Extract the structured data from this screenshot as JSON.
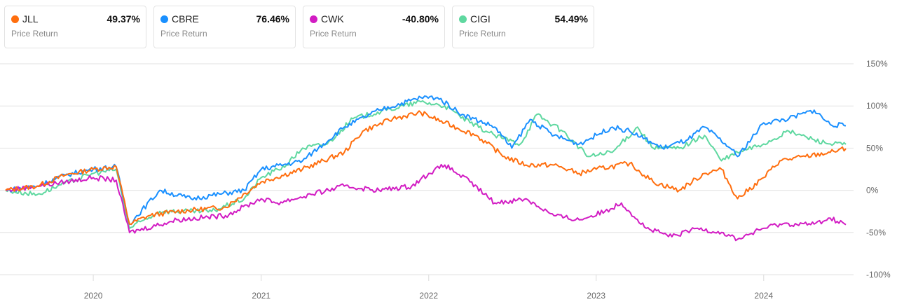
{
  "legend": [
    {
      "ticker": "JLL",
      "value": "49.37%",
      "sub": "Price Return",
      "color": "#ff6e0e"
    },
    {
      "ticker": "CBRE",
      "value": "76.46%",
      "sub": "Price Return",
      "color": "#1a90ff"
    },
    {
      "ticker": "CWK",
      "value": "-40.80%",
      "sub": "Price Return",
      "color": "#d21cc3"
    },
    {
      "ticker": "CIGI",
      "value": "54.49%",
      "sub": "Price Return",
      "color": "#5fd8a0"
    }
  ],
  "chart_data": {
    "type": "line",
    "xlim": [
      "2019-06-24",
      "2024-06-28"
    ],
    "ylim": [
      -100,
      150
    ],
    "yticks": [
      150,
      100,
      50,
      0,
      -50,
      -100
    ],
    "ytick_labels": [
      "150%",
      "100%",
      "50%",
      "0%",
      "-50%",
      "-100%"
    ],
    "xticks": [
      "2020-01-01",
      "2021-01-01",
      "2022-01-01",
      "2023-01-01",
      "2024-01-01"
    ],
    "xtick_labels": [
      "2020",
      "2021",
      "2022",
      "2023",
      "2024"
    ],
    "grid": true,
    "series": [
      {
        "name": "JLL",
        "color": "#ff6e0e",
        "points": [
          [
            "2019-06-24",
            0
          ],
          [
            "2019-09-01",
            5
          ],
          [
            "2019-11-01",
            18
          ],
          [
            "2020-01-01",
            25
          ],
          [
            "2020-02-20",
            28
          ],
          [
            "2020-03-20",
            -40
          ],
          [
            "2020-05-01",
            -30
          ],
          [
            "2020-07-01",
            -25
          ],
          [
            "2020-10-15",
            -20
          ],
          [
            "2021-01-01",
            10
          ],
          [
            "2021-04-01",
            25
          ],
          [
            "2021-07-01",
            45
          ],
          [
            "2021-08-10",
            70
          ],
          [
            "2021-10-15",
            85
          ],
          [
            "2021-12-15",
            92
          ],
          [
            "2022-02-05",
            80
          ],
          [
            "2022-04-15",
            65
          ],
          [
            "2022-06-15",
            40
          ],
          [
            "2022-08-01",
            30
          ],
          [
            "2022-10-01",
            30
          ],
          [
            "2022-11-25",
            20
          ],
          [
            "2023-01-01",
            25
          ],
          [
            "2023-03-15",
            32
          ],
          [
            "2023-05-05",
            10
          ],
          [
            "2023-07-01",
            0
          ],
          [
            "2023-08-25",
            20
          ],
          [
            "2023-10-01",
            25
          ],
          [
            "2023-11-05",
            -10
          ],
          [
            "2024-01-01",
            15
          ],
          [
            "2024-02-05",
            35
          ],
          [
            "2024-04-01",
            40
          ],
          [
            "2024-05-25",
            45
          ],
          [
            "2024-06-28",
            49.37
          ]
        ]
      },
      {
        "name": "CBRE",
        "color": "#1a90ff",
        "points": [
          [
            "2019-06-24",
            0
          ],
          [
            "2019-09-01",
            5
          ],
          [
            "2019-11-01",
            18
          ],
          [
            "2020-01-01",
            25
          ],
          [
            "2020-02-20",
            28
          ],
          [
            "2020-03-20",
            -40
          ],
          [
            "2020-05-25",
            0
          ],
          [
            "2020-08-01",
            -10
          ],
          [
            "2020-11-25",
            0
          ],
          [
            "2021-01-01",
            25
          ],
          [
            "2021-04-01",
            35
          ],
          [
            "2021-07-01",
            75
          ],
          [
            "2021-09-15",
            95
          ],
          [
            "2021-12-15",
            110
          ],
          [
            "2022-01-20",
            110
          ],
          [
            "2022-03-15",
            90
          ],
          [
            "2022-05-25",
            75
          ],
          [
            "2022-07-01",
            50
          ],
          [
            "2022-08-10",
            84
          ],
          [
            "2022-10-01",
            65
          ],
          [
            "2022-11-25",
            55
          ],
          [
            "2023-02-05",
            75
          ],
          [
            "2023-03-15",
            70
          ],
          [
            "2023-05-25",
            50
          ],
          [
            "2023-07-20",
            60
          ],
          [
            "2023-08-25",
            75
          ],
          [
            "2023-10-20",
            50
          ],
          [
            "2023-11-05",
            40
          ],
          [
            "2024-01-01",
            80
          ],
          [
            "2024-02-25",
            85
          ],
          [
            "2024-04-20",
            95
          ],
          [
            "2024-05-25",
            78
          ],
          [
            "2024-06-28",
            76.46
          ]
        ]
      },
      {
        "name": "CWK",
        "color": "#d21cc3",
        "points": [
          [
            "2019-06-24",
            0
          ],
          [
            "2019-09-01",
            5
          ],
          [
            "2019-11-01",
            10
          ],
          [
            "2020-01-01",
            15
          ],
          [
            "2020-02-20",
            12
          ],
          [
            "2020-03-20",
            -50
          ],
          [
            "2020-07-01",
            -35
          ],
          [
            "2020-10-15",
            -30
          ],
          [
            "2021-01-01",
            -10
          ],
          [
            "2021-02-05",
            -15
          ],
          [
            "2021-04-20",
            -5
          ],
          [
            "2021-07-01",
            5
          ],
          [
            "2021-09-15",
            0
          ],
          [
            "2021-11-25",
            5
          ],
          [
            "2022-01-01",
            20
          ],
          [
            "2022-02-05",
            30
          ],
          [
            "2022-04-01",
            10
          ],
          [
            "2022-05-25",
            -15
          ],
          [
            "2022-08-01",
            -10
          ],
          [
            "2022-10-01",
            -30
          ],
          [
            "2022-11-25",
            -35
          ],
          [
            "2023-01-20",
            -25
          ],
          [
            "2023-02-25",
            -15
          ],
          [
            "2023-04-20",
            -45
          ],
          [
            "2023-06-15",
            -55
          ],
          [
            "2023-08-10",
            -45
          ],
          [
            "2023-10-01",
            -50
          ],
          [
            "2023-11-05",
            -58
          ],
          [
            "2024-01-01",
            -45
          ],
          [
            "2024-02-05",
            -40
          ],
          [
            "2024-04-20",
            -40
          ],
          [
            "2024-05-25",
            -33
          ],
          [
            "2024-06-28",
            -40.8
          ]
        ]
      },
      {
        "name": "CIGI",
        "color": "#5fd8a0",
        "points": [
          [
            "2019-06-24",
            0
          ],
          [
            "2019-09-01",
            -5
          ],
          [
            "2019-10-15",
            5
          ],
          [
            "2020-01-01",
            20
          ],
          [
            "2020-02-20",
            25
          ],
          [
            "2020-03-20",
            -45
          ],
          [
            "2020-05-25",
            -25
          ],
          [
            "2020-09-15",
            -25
          ],
          [
            "2020-11-25",
            -10
          ],
          [
            "2021-01-01",
            15
          ],
          [
            "2021-02-25",
            30
          ],
          [
            "2021-04-01",
            50
          ],
          [
            "2021-05-25",
            55
          ],
          [
            "2021-07-20",
            85
          ],
          [
            "2021-10-01",
            95
          ],
          [
            "2021-12-15",
            105
          ],
          [
            "2022-02-05",
            100
          ],
          [
            "2022-04-01",
            80
          ],
          [
            "2022-05-25",
            65
          ],
          [
            "2022-07-20",
            55
          ],
          [
            "2022-08-25",
            90
          ],
          [
            "2022-10-20",
            70
          ],
          [
            "2022-12-15",
            40
          ],
          [
            "2023-02-05",
            45
          ],
          [
            "2023-04-01",
            75
          ],
          [
            "2023-05-05",
            50
          ],
          [
            "2023-07-01",
            50
          ],
          [
            "2023-08-25",
            65
          ],
          [
            "2023-10-01",
            35
          ],
          [
            "2023-11-05",
            45
          ],
          [
            "2024-01-01",
            55
          ],
          [
            "2024-02-25",
            70
          ],
          [
            "2024-04-20",
            60
          ],
          [
            "2024-05-25",
            55
          ],
          [
            "2024-06-28",
            54.49
          ]
        ]
      }
    ]
  }
}
